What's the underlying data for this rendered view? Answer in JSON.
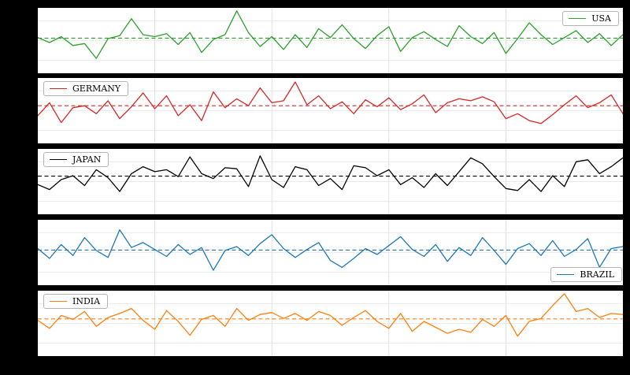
{
  "figure": {
    "background_color": "#000000",
    "panel_background_color": "#ffffff",
    "grid_color": "#d9d9d9",
    "n_panels": 5
  },
  "chart_data": [
    {
      "type": "line",
      "name": "USA",
      "color": "#2ca02c",
      "legend_position": "top-right",
      "mean_line": 0.25,
      "mean_line_style": "dashed",
      "xlim": [
        0,
        50
      ],
      "ylim": [
        -3.3,
        3.3
      ],
      "grid": true,
      "x_step": 1,
      "values": [
        0.3,
        -0.2,
        0.4,
        -0.5,
        -0.3,
        -1.8,
        0.2,
        0.5,
        2.2,
        0.6,
        0.4,
        0.7,
        -0.4,
        0.8,
        -1.2,
        0.1,
        0.6,
        3.0,
        0.8,
        -0.6,
        0.4,
        -0.9,
        0.6,
        -0.7,
        1.2,
        0.3,
        1.6,
        0.2,
        -0.8,
        0.5,
        1.4,
        -1.1,
        0.3,
        0.9,
        0.1,
        -0.6,
        1.5,
        0.4,
        -0.3,
        0.8,
        -1.3,
        0.2,
        1.8,
        0.6,
        -0.4,
        0.3,
        1.0,
        -0.2,
        0.7,
        -0.5,
        0.6
      ]
    },
    {
      "type": "line",
      "name": "GERMANY",
      "color": "#d62728",
      "legend_position": "top-left",
      "mean_line": 0.5,
      "mean_line_style": "dashed",
      "xlim": [
        0,
        50
      ],
      "ylim": [
        -3.3,
        3.3
      ],
      "grid": true,
      "x_step": 1,
      "values": [
        -0.5,
        0.8,
        -1.2,
        0.3,
        0.5,
        -0.3,
        1.0,
        -0.8,
        0.4,
        1.8,
        0.2,
        1.5,
        -0.5,
        0.6,
        -1.0,
        1.9,
        0.3,
        1.2,
        0.5,
        2.3,
        0.8,
        1.0,
        2.9,
        0.6,
        1.5,
        0.2,
        0.9,
        -0.3,
        1.1,
        0.4,
        1.3,
        0.1,
        0.7,
        1.6,
        -0.2,
        0.8,
        1.2,
        1.0,
        1.4,
        0.9,
        -0.8,
        -0.3,
        -1.0,
        -1.3,
        -0.4,
        0.6,
        1.5,
        0.3,
        0.8,
        1.6,
        -0.3
      ]
    },
    {
      "type": "line",
      "name": "JAPAN",
      "color": "#000000",
      "legend_position": "top-left",
      "mean_line": 0.55,
      "mean_line_style": "dashed",
      "xlim": [
        0,
        50
      ],
      "ylim": [
        -3.3,
        3.3
      ],
      "grid": true,
      "x_step": 1,
      "values": [
        -0.3,
        -0.8,
        0.2,
        0.6,
        -0.4,
        1.2,
        0.4,
        -1.0,
        0.8,
        1.5,
        1.0,
        1.2,
        0.5,
        2.5,
        0.8,
        0.3,
        1.4,
        1.3,
        -0.5,
        2.6,
        0.2,
        -0.6,
        1.5,
        1.2,
        -0.4,
        0.3,
        -0.8,
        1.6,
        1.4,
        0.6,
        1.2,
        -0.3,
        0.4,
        -0.6,
        0.8,
        -0.4,
        1.0,
        2.4,
        1.8,
        0.5,
        -0.7,
        -0.9,
        0.2,
        -1.0,
        0.6,
        -0.5,
        2.0,
        2.2,
        0.8,
        1.5,
        2.4
      ]
    },
    {
      "type": "line",
      "name": "BRAZIL",
      "color": "#1f77b4",
      "legend_position": "bottom-right",
      "mean_line": 0.25,
      "mean_line_style": "dashed",
      "xlim": [
        0,
        50
      ],
      "ylim": [
        -3.3,
        3.3
      ],
      "grid": true,
      "x_step": 1,
      "values": [
        0.4,
        -0.6,
        0.8,
        -0.3,
        1.5,
        0.2,
        -0.5,
        2.3,
        0.5,
        1.0,
        0.3,
        -0.4,
        0.8,
        -0.2,
        0.5,
        -1.8,
        0.2,
        0.6,
        -0.3,
        0.9,
        1.8,
        0.4,
        -0.5,
        0.3,
        1.0,
        -0.8,
        -1.5,
        -0.6,
        0.4,
        -0.2,
        0.7,
        1.6,
        0.3,
        -0.4,
        0.8,
        -0.9,
        0.5,
        -0.3,
        1.5,
        0.2,
        -1.2,
        0.4,
        0.9,
        -0.3,
        1.2,
        -0.4,
        0.3,
        1.4,
        -1.5,
        0.4,
        0.6
      ]
    },
    {
      "type": "line",
      "name": "INDIA",
      "color": "#ff7f0e",
      "legend_position": "top-left",
      "mean_line": 0.45,
      "mean_line_style": "dashed",
      "xlim": [
        0,
        50
      ],
      "ylim": [
        -3.3,
        3.3
      ],
      "grid": true,
      "x_step": 1,
      "values": [
        0.3,
        -0.5,
        0.8,
        0.4,
        1.2,
        -0.3,
        0.6,
        1.0,
        1.5,
        0.3,
        -0.6,
        1.3,
        0.2,
        -1.2,
        0.4,
        0.8,
        -0.3,
        1.5,
        0.3,
        0.9,
        1.1,
        0.5,
        1.0,
        0.3,
        1.2,
        0.8,
        -0.2,
        0.6,
        1.3,
        0.2,
        -0.5,
        1.0,
        -0.8,
        0.2,
        -0.4,
        -1.0,
        -0.6,
        -0.9,
        0.4,
        -0.3,
        0.8,
        -1.3,
        0.2,
        0.5,
        1.8,
        3.0,
        1.2,
        1.5,
        0.6,
        1.0,
        0.9
      ]
    }
  ]
}
